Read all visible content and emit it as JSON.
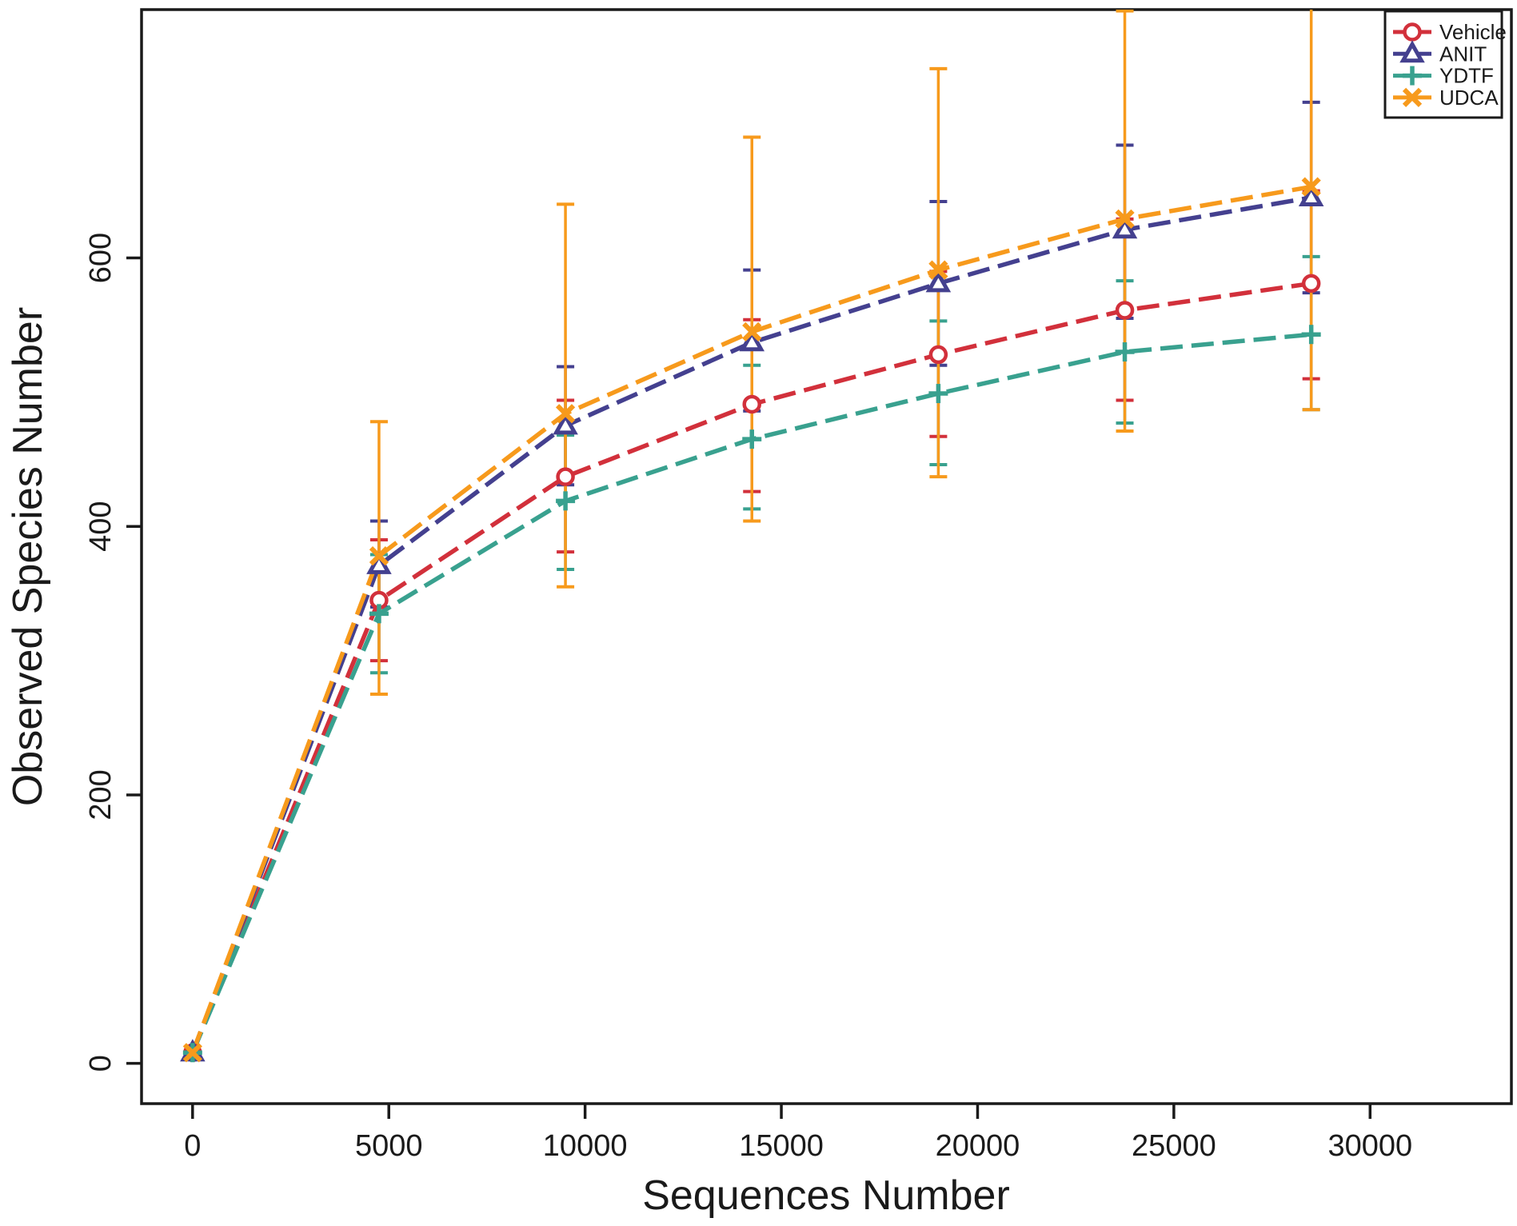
{
  "figure": {
    "background": "#ffffff",
    "axis_color": "#1a1a1a",
    "text_color": "#1a1a1a"
  },
  "chart_data": {
    "type": "line",
    "title": "",
    "xlabel": "Sequences Number",
    "ylabel": "Observed Species Number",
    "grid": false,
    "legend_position": "top-right",
    "xlim": [
      -1300,
      33600
    ],
    "ylim": [
      -30,
      785
    ],
    "x_ticks": [
      0,
      5000,
      10000,
      15000,
      20000,
      25000,
      30000
    ],
    "x_tick_labels": [
      "0",
      "5000",
      "10000",
      "15000",
      "20000",
      "25000",
      "30000"
    ],
    "y_ticks": [
      0,
      200,
      400,
      600
    ],
    "y_tick_labels": [
      "0",
      "200",
      "400",
      "600"
    ],
    "x": [
      1,
      4750,
      9500,
      14250,
      19000,
      23750,
      28500
    ],
    "series": [
      {
        "name": "Vehicle",
        "color": "#d2303b",
        "marker": "circle",
        "values": [
          8,
          345,
          437,
          491,
          528,
          561,
          581
        ],
        "err_lower": [
          8,
          300,
          381,
          426,
          467,
          494,
          510
        ],
        "err_upper": [
          8,
          390,
          494,
          554,
          590,
          629,
          650
        ]
      },
      {
        "name": "ANIT",
        "color": "#44408f",
        "marker": "triangle",
        "values": [
          8,
          371,
          475,
          537,
          581,
          621,
          645
        ],
        "err_lower": [
          8,
          340,
          431,
          486,
          520,
          555,
          574
        ],
        "err_upper": [
          8,
          404,
          519,
          591,
          642,
          684,
          716
        ]
      },
      {
        "name": "YDTF",
        "color": "#39a18f",
        "marker": "plus",
        "values": [
          8,
          335,
          419,
          465,
          499,
          530,
          543
        ],
        "err_lower": [
          8,
          291,
          368,
          413,
          446,
          477,
          487
        ],
        "err_upper": [
          8,
          379,
          468,
          520,
          553,
          583,
          601
        ]
      },
      {
        "name": "UDCA",
        "color": "#f79a1c",
        "marker": "x",
        "values": [
          8,
          378,
          484,
          545,
          591,
          629,
          653
        ],
        "err_lower": [
          8,
          275,
          355,
          404,
          437,
          471,
          487
        ],
        "err_upper": [
          8,
          478,
          640,
          690,
          741,
          784,
          800
        ]
      }
    ]
  }
}
